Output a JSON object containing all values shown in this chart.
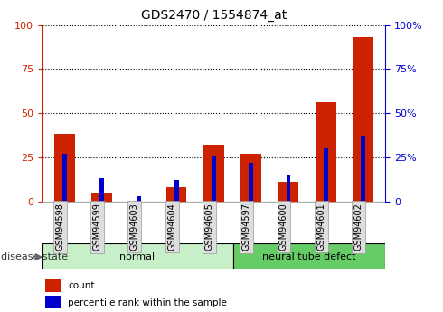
{
  "title": "GDS2470 / 1554874_at",
  "categories": [
    "GSM94598",
    "GSM94599",
    "GSM94603",
    "GSM94604",
    "GSM94605",
    "GSM94597",
    "GSM94600",
    "GSM94601",
    "GSM94602"
  ],
  "red_values": [
    38,
    5,
    0,
    8,
    32,
    27,
    11,
    56,
    93
  ],
  "blue_values": [
    27,
    13,
    3,
    12,
    26,
    22,
    15,
    30,
    37
  ],
  "groups": [
    {
      "label": "normal",
      "start": 0,
      "end": 5,
      "color": "#c8f0c8"
    },
    {
      "label": "neural tube defect",
      "start": 5,
      "end": 9,
      "color": "#66cc66"
    }
  ],
  "ylim": [
    0,
    100
  ],
  "yticks": [
    0,
    25,
    50,
    75,
    100
  ],
  "left_axis_color": "#cc2200",
  "right_axis_color": "#0000cc",
  "red_color": "#cc2200",
  "blue_color": "#0000cc",
  "bg_color": "#ffffff",
  "disease_state_label": "disease state",
  "legend_items": [
    {
      "label": "count",
      "color": "#cc2200"
    },
    {
      "label": "percentile rank within the sample",
      "color": "#0000cc"
    }
  ],
  "grid_color": "#000000",
  "red_bar_width": 0.55,
  "blue_bar_width": 0.12,
  "label_box_color": "#dddddd",
  "label_box_edge": "#999999"
}
